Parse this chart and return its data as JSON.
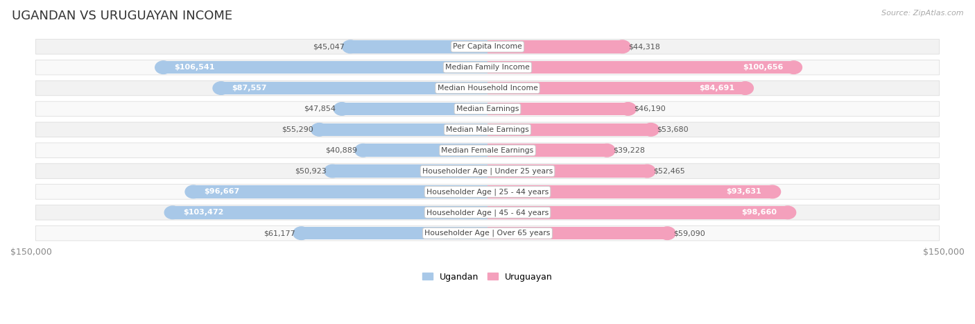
{
  "title": "UGANDAN VS URUGUAYAN INCOME",
  "source": "Source: ZipAtlas.com",
  "categories": [
    "Per Capita Income",
    "Median Family Income",
    "Median Household Income",
    "Median Earnings",
    "Median Male Earnings",
    "Median Female Earnings",
    "Householder Age | Under 25 years",
    "Householder Age | 25 - 44 years",
    "Householder Age | 45 - 64 years",
    "Householder Age | Over 65 years"
  ],
  "ugandan_values": [
    45047,
    106541,
    87557,
    47854,
    55290,
    40889,
    50923,
    96667,
    103472,
    61177
  ],
  "uruguayan_values": [
    44318,
    100656,
    84691,
    46190,
    53680,
    39228,
    52465,
    93631,
    98660,
    59090
  ],
  "max_value": 150000,
  "ugandan_color": "#a8c8e8",
  "uruguayan_color": "#f4a0bc",
  "label_color_dark": "#555555",
  "label_color_white": "#ffffff",
  "threshold": 80000,
  "bg_color": "#ffffff",
  "row_bg_odd": "#f2f2f2",
  "row_bg_even": "#f9f9f9",
  "center_label_color": "#444444",
  "axis_label_color": "#888888",
  "title_color": "#333333",
  "legend_ugandan": "Ugandan",
  "legend_uruguayan": "Uruguayan"
}
